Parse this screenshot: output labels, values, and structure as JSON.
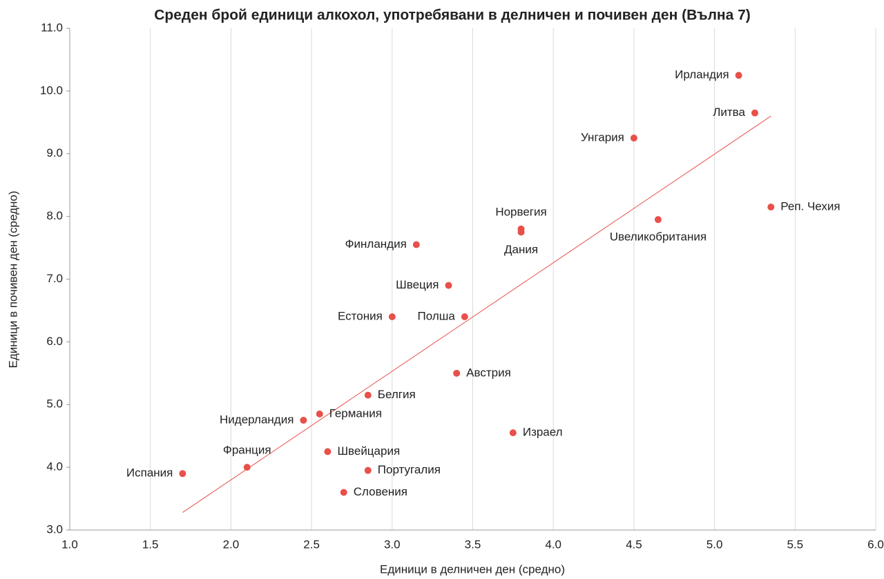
{
  "chart_data": {
    "type": "scatter",
    "title": "Среден брой единици алкохол, употребявани в делничен и почивен ден (Вълна 7)",
    "x_label": "Единици в делничен ден (средно)",
    "y_label": "Единици в почивен ден (средно)",
    "color": "#e8504a",
    "trend_color": "#e8504a",
    "grid": "x",
    "labels": [
      "Испания",
      "Франция",
      "Нидерландия",
      "Германия",
      "Белгия",
      "Швейцария",
      "Португалия",
      "Словения",
      "Естония",
      "Полша",
      "Швеция",
      "Финландия",
      "Австрия",
      "Норвегия",
      "Дания",
      "Израел",
      "Унгария",
      "Uвеликобритания",
      "Ирландия",
      "Литва",
      "Реп. Чехия"
    ],
    "label_positions": [
      "left",
      "above",
      "left",
      "right",
      "right",
      "right",
      "right",
      "right",
      "left",
      "left",
      "left",
      "left",
      "right",
      "above",
      "below",
      "right",
      "left",
      "below",
      "left",
      "left",
      "right"
    ],
    "x": [
      1.7,
      2.1,
      2.45,
      2.55,
      2.85,
      2.6,
      2.85,
      2.7,
      3.0,
      3.45,
      3.35,
      3.15,
      3.4,
      3.8,
      3.8,
      3.75,
      4.5,
      4.65,
      5.15,
      5.25,
      5.35
    ],
    "values": [
      3.9,
      4.0,
      4.75,
      4.85,
      5.15,
      4.25,
      3.95,
      3.6,
      6.4,
      6.4,
      6.9,
      7.55,
      5.5,
      7.8,
      7.75,
      4.55,
      9.25,
      7.95,
      10.25,
      9.65,
      8.15
    ],
    "trendline": {
      "x": [
        1.7,
        5.35
      ],
      "y": [
        3.28,
        9.6
      ]
    },
    "xlim": [
      1.0,
      6.0
    ],
    "xticks": [
      {
        "value": 1.0,
        "label": "1.0"
      },
      1.5,
      {
        "value": 2.0,
        "label": "2.0"
      },
      2.5,
      {
        "value": 3.0,
        "label": "3.0"
      },
      3.5,
      {
        "value": 4.0,
        "label": "4.0"
      },
      4.5,
      {
        "value": 5.0,
        "label": "5.0"
      },
      5.5,
      {
        "value": 6.0,
        "label": "6.0"
      }
    ],
    "ylim": [
      3.0,
      11.0
    ],
    "yticks": [
      {
        "value": 3.0,
        "label": "3.0"
      },
      {
        "value": 4.0,
        "label": "4.0"
      },
      {
        "value": 5.0,
        "label": "5.0"
      },
      {
        "value": 6.0,
        "label": "6.0"
      },
      {
        "value": 7.0,
        "label": "7.0"
      },
      {
        "value": 8.0,
        "label": "8.0"
      },
      {
        "value": 9.0,
        "label": "9.0"
      },
      {
        "value": 10.0,
        "label": "10.0"
      },
      {
        "value": 11.0,
        "label": "11.0"
      }
    ]
  }
}
